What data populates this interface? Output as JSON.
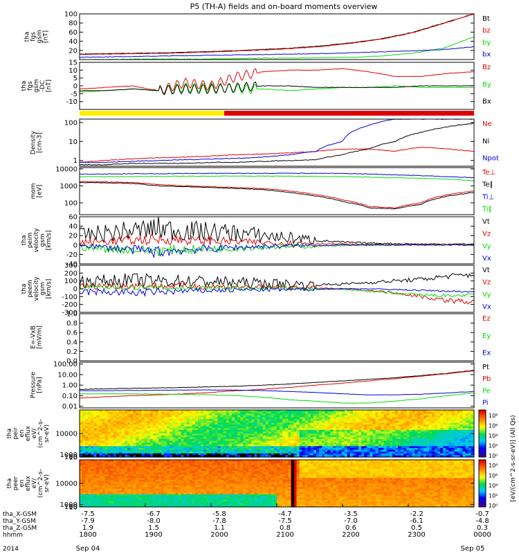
{
  "title": "P5 (TH-A) fields and on-board moments overview",
  "colors": {
    "black": "#000000",
    "red": "#e00000",
    "green": "#00dd00",
    "blue": "#0000dd",
    "yellow": "#ffee00"
  },
  "chart_data": [
    {
      "type": "line",
      "name": "fgs_gsm_magnitude",
      "ylabel": [
        "tha",
        "fgs",
        "gsm",
        "[nT]"
      ],
      "ylim": [
        0,
        100
      ],
      "yticks": [
        "100",
        "80",
        "60",
        "40",
        "20"
      ],
      "ytick_values": [
        100,
        80,
        60,
        40,
        20
      ],
      "legend": [
        "Bt",
        "bz",
        "by",
        "bx"
      ],
      "legend_colors": [
        "#000000",
        "#e00000",
        "#00dd00",
        "#0000dd"
      ],
      "series": [
        {
          "name": "Bt",
          "color": "#000000",
          "values": [
            12,
            13,
            14,
            15,
            17,
            19,
            22,
            25,
            30,
            37,
            46,
            60,
            80,
            100
          ]
        },
        {
          "name": "bz",
          "color": "#e00000",
          "values": [
            11,
            12,
            13,
            14,
            16,
            18,
            21,
            24,
            29,
            36,
            45,
            59,
            79,
            100
          ]
        },
        {
          "name": "by",
          "color": "#00dd00",
          "values": [
            0,
            0,
            1,
            1,
            1,
            2,
            3,
            3,
            4,
            5,
            8,
            14,
            25,
            50
          ]
        },
        {
          "name": "bx",
          "color": "#0000dd",
          "values": [
            5,
            6,
            7,
            8,
            9,
            10,
            11,
            12,
            13,
            15,
            17,
            19,
            22,
            28
          ]
        }
      ]
    },
    {
      "type": "line",
      "name": "fgs_gsm_dc",
      "ylabel": [
        "tha",
        "fgs",
        "gsm",
        "-DC",
        "[nT]"
      ],
      "ylim": [
        -15,
        15
      ],
      "yticks": [
        "15",
        "10",
        "5",
        "0",
        "-5",
        "-10"
      ],
      "ytick_values": [
        15,
        10,
        5,
        0,
        -5,
        -10
      ],
      "legend": [
        "Bz",
        "By",
        "Bx"
      ],
      "legend_colors": [
        "#e00000",
        "#00dd00",
        "#000000"
      ],
      "series": [
        {
          "name": "Bz",
          "color": "#e00000",
          "values": [
            -2,
            -1,
            0,
            -3,
            2,
            0,
            6,
            9,
            10,
            10,
            11,
            9,
            6,
            6,
            8,
            9
          ]
        },
        {
          "name": "By",
          "color": "#00dd00",
          "values": [
            -4,
            -3,
            -2,
            -3,
            -1,
            -1,
            -2,
            -2,
            -3,
            -2,
            -1,
            -1,
            0,
            -1,
            -1,
            -1
          ]
        },
        {
          "name": "Bx",
          "color": "#000000",
          "values": [
            -3,
            -3,
            -2,
            -3,
            -2,
            -2,
            -1,
            0,
            0,
            -1,
            -1,
            -1,
            -1,
            0,
            0,
            0
          ]
        }
      ]
    },
    {
      "type": "bar",
      "name": "mode_bar",
      "segments": [
        {
          "from_hour": 0,
          "to_hour": 2.2,
          "color": "#ffee00"
        },
        {
          "from_hour": 2.2,
          "to_hour": 6,
          "color": "#e00000"
        }
      ]
    },
    {
      "type": "line",
      "name": "density",
      "scale": "log",
      "ylabel": [
        "Density",
        "[cm-3]"
      ],
      "ylim": [
        0.5,
        150
      ],
      "yticks": [
        "100",
        "10",
        "1"
      ],
      "ytick_values": [
        100,
        10,
        1
      ],
      "legend": [
        "Ne",
        "Ni",
        "Npot"
      ],
      "legend_colors": [
        "#e00000",
        "#000000",
        "#0000dd"
      ],
      "series": [
        {
          "name": "Ne",
          "color": "#e00000",
          "values": [
            0.8,
            1.0,
            1.2,
            1.4,
            1.5,
            1.7,
            2.0,
            2.2,
            2.5,
            3,
            4,
            4,
            3,
            5,
            4,
            3
          ]
        },
        {
          "name": "Ni",
          "color": "#000000",
          "values": [
            0.6,
            0.6,
            0.7,
            0.7,
            0.7,
            0.8,
            0.8,
            0.9,
            1.0,
            1.1,
            2,
            4,
            10,
            30,
            60,
            90
          ]
        },
        {
          "name": "Npot",
          "color": "#0000dd",
          "values": [
            0.8,
            0.8,
            0.9,
            1.0,
            1.1,
            1.2,
            1.3,
            1.5,
            2.0,
            3,
            10,
            70,
            150,
            150,
            150,
            150
          ]
        }
      ]
    },
    {
      "type": "line",
      "name": "temperature",
      "scale": "log",
      "ylabel": [
        "mom",
        "[eV]"
      ],
      "ylim": [
        20,
        12000
      ],
      "yticks": [
        "10000",
        "1000",
        "100"
      ],
      "ytick_values": [
        10000,
        1000,
        100
      ],
      "legend": [
        "Te⊥",
        "Te∥",
        "Ti⊥",
        "Ti∥"
      ],
      "legend_colors": [
        "#e00000",
        "#000000",
        "#0000dd",
        "#00dd00"
      ],
      "series": [
        {
          "name": "Te⊥",
          "color": "#e00000",
          "values": [
            1800,
            1700,
            1600,
            1200,
            1000,
            900,
            800,
            700,
            500,
            300,
            150,
            60,
            50,
            100,
            300,
            500
          ]
        },
        {
          "name": "Te∥",
          "color": "#000000",
          "values": [
            1600,
            1500,
            1400,
            1000,
            900,
            800,
            700,
            600,
            400,
            250,
            120,
            50,
            45,
            80,
            250,
            400
          ]
        },
        {
          "name": "Ti⊥",
          "color": "#0000dd",
          "values": [
            5000,
            5000,
            5200,
            5200,
            5400,
            5500,
            5500,
            5600,
            5600,
            5500,
            5400,
            5000,
            4500,
            4000,
            3500,
            3000
          ]
        },
        {
          "name": "Ti∥",
          "color": "#00dd00",
          "values": [
            3500,
            3500,
            3600,
            3600,
            3700,
            3700,
            3800,
            3800,
            3700,
            3600,
            3500,
            3300,
            3000,
            2800,
            2500,
            2000
          ]
        }
      ]
    },
    {
      "type": "line",
      "name": "peim_velocity",
      "ylabel": [
        "tha",
        "peim",
        "velocity",
        "gsm",
        "[km/s]"
      ],
      "ylim": [
        -40,
        60
      ],
      "yticks": [
        "60",
        "40",
        "20",
        "0",
        "-20",
        "-40"
      ],
      "ytick_values": [
        60,
        40,
        20,
        0,
        -20,
        -40
      ],
      "legend": [
        "Vt",
        "Vz",
        "Vy",
        "Vx"
      ],
      "legend_colors": [
        "#000000",
        "#e00000",
        "#00dd00",
        "#0000dd"
      ],
      "series": [
        {
          "name": "Vt",
          "color": "#000000",
          "values": [
            20,
            25,
            30,
            35,
            30,
            28,
            25,
            20,
            15,
            10,
            6,
            4,
            3,
            2,
            2,
            2
          ]
        },
        {
          "name": "Vz",
          "color": "#e00000",
          "values": [
            5,
            8,
            10,
            12,
            10,
            9,
            7,
            5,
            4,
            3,
            2,
            1,
            1,
            1,
            1,
            1
          ]
        },
        {
          "name": "Vy",
          "color": "#00dd00",
          "values": [
            -5,
            -8,
            -10,
            -12,
            -10,
            -8,
            -6,
            -4,
            -3,
            -2,
            -1,
            -1,
            0,
            0,
            0,
            0
          ]
        },
        {
          "name": "Vx",
          "color": "#0000dd",
          "values": [
            0,
            -5,
            -10,
            -15,
            -10,
            -8,
            -5,
            -3,
            -2,
            -1,
            0,
            0,
            0,
            0,
            0,
            0
          ]
        }
      ]
    },
    {
      "type": "line",
      "name": "peem_velocity",
      "ylabel": [
        "tha",
        "peem",
        "velocity",
        "gsm",
        "[km/s]"
      ],
      "ylim": [
        -300,
        300
      ],
      "yticks": [
        "300",
        "200",
        "100",
        "0",
        "-100",
        "-200",
        "-300"
      ],
      "ytick_values": [
        300,
        200,
        100,
        0,
        -100,
        -200,
        -300
      ],
      "legend": [
        "Vt",
        "Vz",
        "Vy",
        "Vx"
      ],
      "legend_colors": [
        "#000000",
        "#e00000",
        "#00dd00",
        "#0000dd"
      ],
      "series": [
        {
          "name": "Vt",
          "color": "#000000",
          "values": [
            90,
            100,
            110,
            100,
            100,
            90,
            80,
            70,
            60,
            50,
            60,
            80,
            100,
            120,
            160,
            180
          ]
        },
        {
          "name": "Vz",
          "color": "#e00000",
          "values": [
            30,
            40,
            40,
            35,
            35,
            30,
            25,
            20,
            15,
            10,
            0,
            -20,
            -50,
            -100,
            -150,
            -170
          ]
        },
        {
          "name": "Vy",
          "color": "#00dd00",
          "values": [
            20,
            20,
            20,
            10,
            10,
            10,
            10,
            5,
            5,
            0,
            -10,
            -30,
            -60,
            -80,
            -90,
            -80
          ]
        },
        {
          "name": "Vx",
          "color": "#0000dd",
          "values": [
            -40,
            -40,
            -50,
            -40,
            -30,
            -20,
            -15,
            -10,
            -10,
            -5,
            0,
            0,
            -10,
            -20,
            -30,
            -40
          ]
        }
      ]
    },
    {
      "type": "line",
      "name": "efield",
      "ylabel": [
        "E=-VxB",
        "[mV/m]"
      ],
      "ylim": [
        0,
        1
      ],
      "yticks": [
        "1.0",
        "0.8",
        "0.6",
        "0.4",
        "0.2",
        "0.0"
      ],
      "ytick_values": [
        1,
        0.8,
        0.6,
        0.4,
        0.2,
        0
      ],
      "legend": [
        "Ez",
        "Ey",
        "Ex"
      ],
      "legend_colors": [
        "#e00000",
        "#00dd00",
        "#0000dd"
      ],
      "series": []
    },
    {
      "type": "line",
      "name": "pressure",
      "scale": "log",
      "ylabel": [
        "Pressure",
        "[nPa]"
      ],
      "ylim": [
        0.007,
        150
      ],
      "yticks": [
        "100.00",
        "10.00",
        "1.00",
        "0.10",
        "0.01"
      ],
      "ytick_values": [
        100,
        10,
        1,
        0.1,
        0.01
      ],
      "legend": [
        "Pt",
        "Pb",
        "Pe",
        "Pi"
      ],
      "legend_colors": [
        "#000000",
        "#e00000",
        "#00dd00",
        "#0000dd"
      ],
      "series": [
        {
          "name": "Pt",
          "color": "#000000",
          "values": [
            0.4,
            0.45,
            0.5,
            0.55,
            0.6,
            0.7,
            0.8,
            1.0,
            1.3,
            1.8,
            2.5,
            3.5,
            5,
            8,
            13,
            25
          ]
        },
        {
          "name": "Pb",
          "color": "#e00000",
          "values": [
            0.06,
            0.08,
            0.1,
            0.12,
            0.15,
            0.2,
            0.3,
            0.4,
            0.6,
            1.0,
            1.5,
            2.5,
            4,
            7,
            12,
            22
          ]
        },
        {
          "name": "Pe",
          "color": "#00dd00",
          "values": [
            0.15,
            0.15,
            0.15,
            0.14,
            0.13,
            0.12,
            0.1,
            0.07,
            0.04,
            0.03,
            0.02,
            0.02,
            0.03,
            0.05,
            0.1,
            0.18
          ]
        },
        {
          "name": "Pi",
          "color": "#0000dd",
          "values": [
            0.3,
            0.3,
            0.32,
            0.33,
            0.34,
            0.35,
            0.34,
            0.3,
            0.25,
            0.2,
            0.15,
            0.12,
            0.12,
            0.14,
            0.18,
            0.25
          ]
        }
      ]
    },
    {
      "type": "heatmap",
      "name": "peir_spectrogram",
      "ylabel": [
        "tha",
        "peir",
        "en",
        "eflux",
        "eV/",
        "(cm^2-s-",
        "sr-eV)"
      ],
      "ylim": [
        7,
        20000
      ],
      "yticks": [
        "10000",
        "1000",
        "100",
        "10"
      ],
      "ytick_values": [
        10000,
        1000,
        100,
        10
      ]
    },
    {
      "type": "heatmap",
      "name": "peer_spectrogram",
      "ylabel": [
        "tha",
        "peer",
        "en",
        "eflux",
        "eV/",
        "(cm^2-s-",
        "sr-eV)"
      ],
      "ylim": [
        7,
        20000
      ],
      "yticks": [
        "10000",
        "1000",
        "100",
        "10"
      ],
      "ytick_values": [
        10000,
        1000,
        100,
        10
      ]
    }
  ],
  "colorbar": {
    "label": "[eV/(cm^2-s-sr-eV)] (All Qs)",
    "top_ticks": [
      "10⁸",
      "10⁶",
      "10⁴",
      "10²",
      "10⁰"
    ],
    "bottom_ticks": [
      "10⁸",
      "10⁶",
      "10⁴",
      "10²",
      "10⁰"
    ]
  },
  "xaxis": {
    "rows": [
      {
        "label": "tha_X-GSM",
        "values": [
          "-7.5",
          "-6.7",
          "-5.8",
          "-4.7",
          "-3.5",
          "-2.2",
          "-0.7"
        ]
      },
      {
        "label": "tha_Y-GSM",
        "values": [
          "-7.9",
          "-8.0",
          "-7.8",
          "-7.5",
          "-7.0",
          "-6.1",
          "-4.8"
        ]
      },
      {
        "label": "tha_Z-GSM",
        "values": [
          "1.9",
          "1.5",
          "1.1",
          "0.8",
          "0.6",
          "0.5",
          "0.3"
        ]
      },
      {
        "label": "hhmm",
        "values": [
          "1800",
          "1900",
          "2000",
          "2100",
          "2200",
          "2300",
          "0000"
        ]
      }
    ],
    "year": "2014",
    "dates": [
      "Sep 04",
      "Sep 05"
    ]
  }
}
